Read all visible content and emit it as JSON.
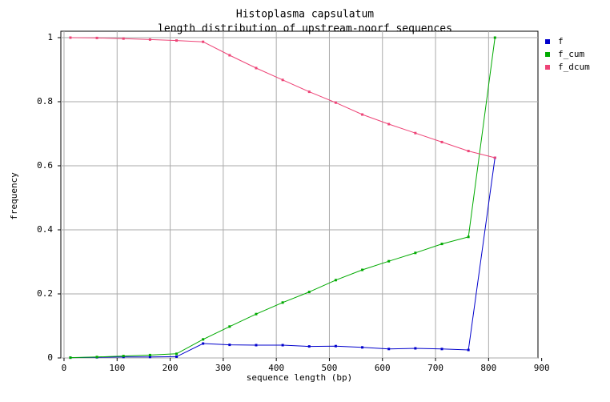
{
  "chart_data": {
    "type": "line",
    "title": "Histoplasma capsulatum",
    "subtitle": "length distribution of upstream-noorf sequences",
    "xlabel": "sequence length (bp)",
    "ylabel": "frequency",
    "x": [
      12,
      62,
      112,
      162,
      212,
      262,
      312,
      362,
      412,
      462,
      512,
      562,
      612,
      662,
      712,
      762,
      812
    ],
    "series": [
      {
        "name": "f",
        "color": "#0000cc",
        "values": [
          0.001,
          0.002,
          0.003,
          0.003,
          0.004,
          0.045,
          0.041,
          0.04,
          0.04,
          0.036,
          0.037,
          0.033,
          0.028,
          0.03,
          0.028,
          0.025,
          0.625
        ]
      },
      {
        "name": "f_cum",
        "color": "#00aa00",
        "values": [
          0.001,
          0.003,
          0.006,
          0.009,
          0.013,
          0.058,
          0.098,
          0.137,
          0.173,
          0.206,
          0.243,
          0.275,
          0.302,
          0.328,
          0.356,
          0.378,
          1.0
        ]
      },
      {
        "name": "f_dcum",
        "color": "#ee4477",
        "values": [
          1.0,
          0.999,
          0.997,
          0.994,
          0.991,
          0.987,
          0.945,
          0.905,
          0.868,
          0.831,
          0.797,
          0.76,
          0.73,
          0.702,
          0.674,
          0.646,
          0.625
        ]
      }
    ],
    "xlim": [
      -6,
      893
    ],
    "xticks": [
      0,
      100,
      200,
      300,
      400,
      500,
      600,
      700,
      800,
      900
    ],
    "ylim": [
      0,
      1.02
    ],
    "yticks": [
      0,
      0.2,
      0.4,
      0.6,
      0.8,
      1
    ],
    "grid": true,
    "legend": "right"
  }
}
